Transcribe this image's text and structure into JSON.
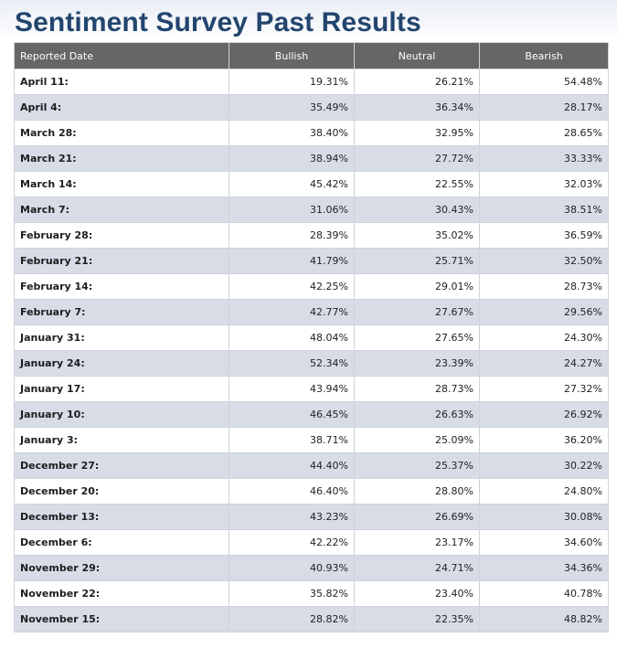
{
  "page": {
    "title": "Sentiment Survey Past Results"
  },
  "table": {
    "headers": [
      "Reported Date",
      "Bullish",
      "Neutral",
      "Bearish"
    ],
    "rows": [
      [
        "April 11:",
        "19.31%",
        "26.21%",
        "54.48%"
      ],
      [
        "April 4:",
        "35.49%",
        "36.34%",
        "28.17%"
      ],
      [
        "March 28:",
        "38.40%",
        "32.95%",
        "28.65%"
      ],
      [
        "March 21:",
        "38.94%",
        "27.72%",
        "33.33%"
      ],
      [
        "March 14:",
        "45.42%",
        "22.55%",
        "32.03%"
      ],
      [
        "March 7:",
        "31.06%",
        "30.43%",
        "38.51%"
      ],
      [
        "February 28:",
        "28.39%",
        "35.02%",
        "36.59%"
      ],
      [
        "February 21:",
        "41.79%",
        "25.71%",
        "32.50%"
      ],
      [
        "February 14:",
        "42.25%",
        "29.01%",
        "28.73%"
      ],
      [
        "February 7:",
        "42.77%",
        "27.67%",
        "29.56%"
      ],
      [
        "January 31:",
        "48.04%",
        "27.65%",
        "24.30%"
      ],
      [
        "January 24:",
        "52.34%",
        "23.39%",
        "24.27%"
      ],
      [
        "January 17:",
        "43.94%",
        "28.73%",
        "27.32%"
      ],
      [
        "January 10:",
        "46.45%",
        "26.63%",
        "26.92%"
      ],
      [
        "January 3:",
        "38.71%",
        "25.09%",
        "36.20%"
      ],
      [
        "December 27:",
        "44.40%",
        "25.37%",
        "30.22%"
      ],
      [
        "December 20:",
        "46.40%",
        "28.80%",
        "24.80%"
      ],
      [
        "December 13:",
        "43.23%",
        "26.69%",
        "30.08%"
      ],
      [
        "December 6:",
        "42.22%",
        "23.17%",
        "34.60%"
      ],
      [
        "November 29:",
        "40.93%",
        "24.71%",
        "34.36%"
      ],
      [
        "November 22:",
        "35.82%",
        "23.40%",
        "40.78%"
      ],
      [
        "November 15:",
        "28.82%",
        "22.35%",
        "48.82%"
      ]
    ]
  },
  "colors": {
    "title": "#23456e",
    "header_bg": "#666666",
    "row_alt_bg": "#d7dce7",
    "row_bg": "#ffffff"
  }
}
